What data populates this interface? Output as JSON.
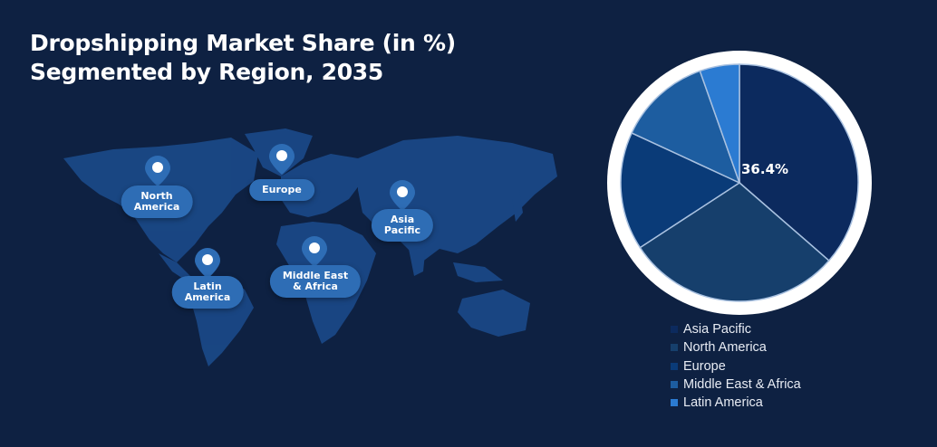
{
  "title": {
    "line1": "Dropshipping Market Share (in %)",
    "line2": "Segmented by Region, 2035"
  },
  "map": {
    "regions": [
      {
        "label": "North\nAmerica",
        "icon": "map-pin-icon"
      },
      {
        "label": "Europe",
        "icon": "map-pin-icon"
      },
      {
        "label": "Asia\nPacific",
        "icon": "map-pin-icon"
      },
      {
        "label": "Latin\nAmerica",
        "icon": "map-pin-icon"
      },
      {
        "label": "Middle East\n& Africa",
        "icon": "map-pin-icon"
      }
    ]
  },
  "pie": {
    "highlight_label": "36.4%"
  },
  "legend": [
    {
      "label": "Asia Pacific",
      "color": "#0c2a5e"
    },
    {
      "label": "North America",
      "color": "#163f6c"
    },
    {
      "label": "Europe",
      "color": "#0a3b78"
    },
    {
      "label": "Middle East & Africa",
      "color": "#1d5da0"
    },
    {
      "label": "Latin America",
      "color": "#2b7bd2"
    }
  ],
  "chart_data": {
    "type": "pie",
    "title": "Dropshipping Market Share (in %) Segmented by Region, 2035",
    "categories": [
      "Asia Pacific",
      "North America",
      "Europe",
      "Middle East & Africa",
      "Latin America"
    ],
    "values": [
      36.4,
      29.4,
      16.1,
      12.7,
      5.4
    ],
    "colors": [
      "#0c2a5e",
      "#163f6c",
      "#0a3b78",
      "#1d5da0",
      "#2b7bd2"
    ],
    "data_labels": {
      "Asia Pacific": "36.4%"
    },
    "start_angle": "12 o'clock",
    "direction": "clockwise",
    "legend_position": "bottom-right"
  }
}
